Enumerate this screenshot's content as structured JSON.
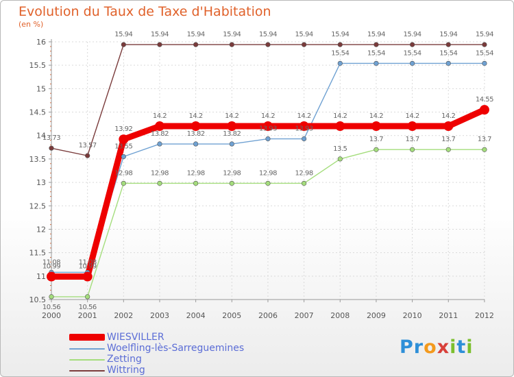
{
  "title": "Evolution du Taux de Taxe d'Habitation",
  "subtitle": "(en %)",
  "logo": {
    "text": "Proxiti",
    "letters": [
      "P",
      "r",
      "o",
      "x",
      "i",
      "t",
      "i"
    ],
    "colors": [
      "#2e8fd8",
      "#2e8fd8",
      "#f39a1e",
      "#d8403a",
      "#7cbf2e",
      "#2e8fd8",
      "#7cbf2e"
    ]
  },
  "chart_data": {
    "type": "line",
    "title": "Evolution du Taux de Taxe d'Habitation",
    "ylabel": "(en %)",
    "xlabel": "",
    "categories": [
      "2000",
      "2001",
      "2002",
      "2003",
      "2004",
      "2005",
      "2006",
      "2007",
      "2008",
      "2009",
      "2010",
      "2011",
      "2012"
    ],
    "ylim": [
      10.5,
      16
    ],
    "yticks": [
      "10.5",
      "11",
      "11.5",
      "12",
      "12.5",
      "13",
      "13.5",
      "14",
      "14.5",
      "15",
      "15.5",
      "16"
    ],
    "grid": true,
    "series": [
      {
        "name": "WIESVILLER",
        "color": "#ee0000",
        "emphasis": "thick",
        "values": [
          10.99,
          10.99,
          13.92,
          14.2,
          14.2,
          14.2,
          14.2,
          14.2,
          14.2,
          14.2,
          14.2,
          14.2,
          14.55
        ],
        "labels": [
          "10.99",
          "10.99",
          "13.92",
          "14.2",
          "14.2",
          "14.2",
          "14.2",
          "14.2",
          "14.2",
          "14.2",
          "14.2",
          "14.2",
          "14.55"
        ]
      },
      {
        "name": "Woelfling-lès-Sarreguemines",
        "color": "#6fa1d2",
        "values": [
          11.08,
          11.08,
          13.55,
          13.82,
          13.82,
          13.82,
          13.93,
          13.93,
          15.54,
          15.54,
          15.54,
          15.54,
          15.54
        ],
        "labels": [
          "11.08",
          "11.08",
          "13.55",
          "13.82",
          "13.82",
          "13.82",
          "13.93",
          "13.93",
          "15.54",
          "15.54",
          "15.54",
          "15.54",
          "15.54"
        ]
      },
      {
        "name": "Zetting",
        "color": "#a4dd7c",
        "values": [
          10.56,
          10.56,
          12.98,
          12.98,
          12.98,
          12.98,
          12.98,
          12.98,
          13.5,
          13.7,
          13.7,
          13.7,
          13.7
        ],
        "labels": [
          "10.56",
          "10.56",
          "12.98",
          "12.98",
          "12.98",
          "12.98",
          "12.98",
          "12.98",
          "13.5",
          "13.7",
          "13.7",
          "13.7",
          "13.7"
        ]
      },
      {
        "name": "Wittring",
        "color": "#7a3b3b",
        "values": [
          13.73,
          13.57,
          15.94,
          15.94,
          15.94,
          15.94,
          15.94,
          15.94,
          15.94,
          15.94,
          15.94,
          15.94,
          15.94
        ],
        "labels": [
          "13.73",
          "13.57",
          "15.94",
          "15.94",
          "15.94",
          "15.94",
          "15.94",
          "15.94",
          "15.94",
          "15.94",
          "15.94",
          "15.94",
          "15.94"
        ]
      }
    ]
  }
}
